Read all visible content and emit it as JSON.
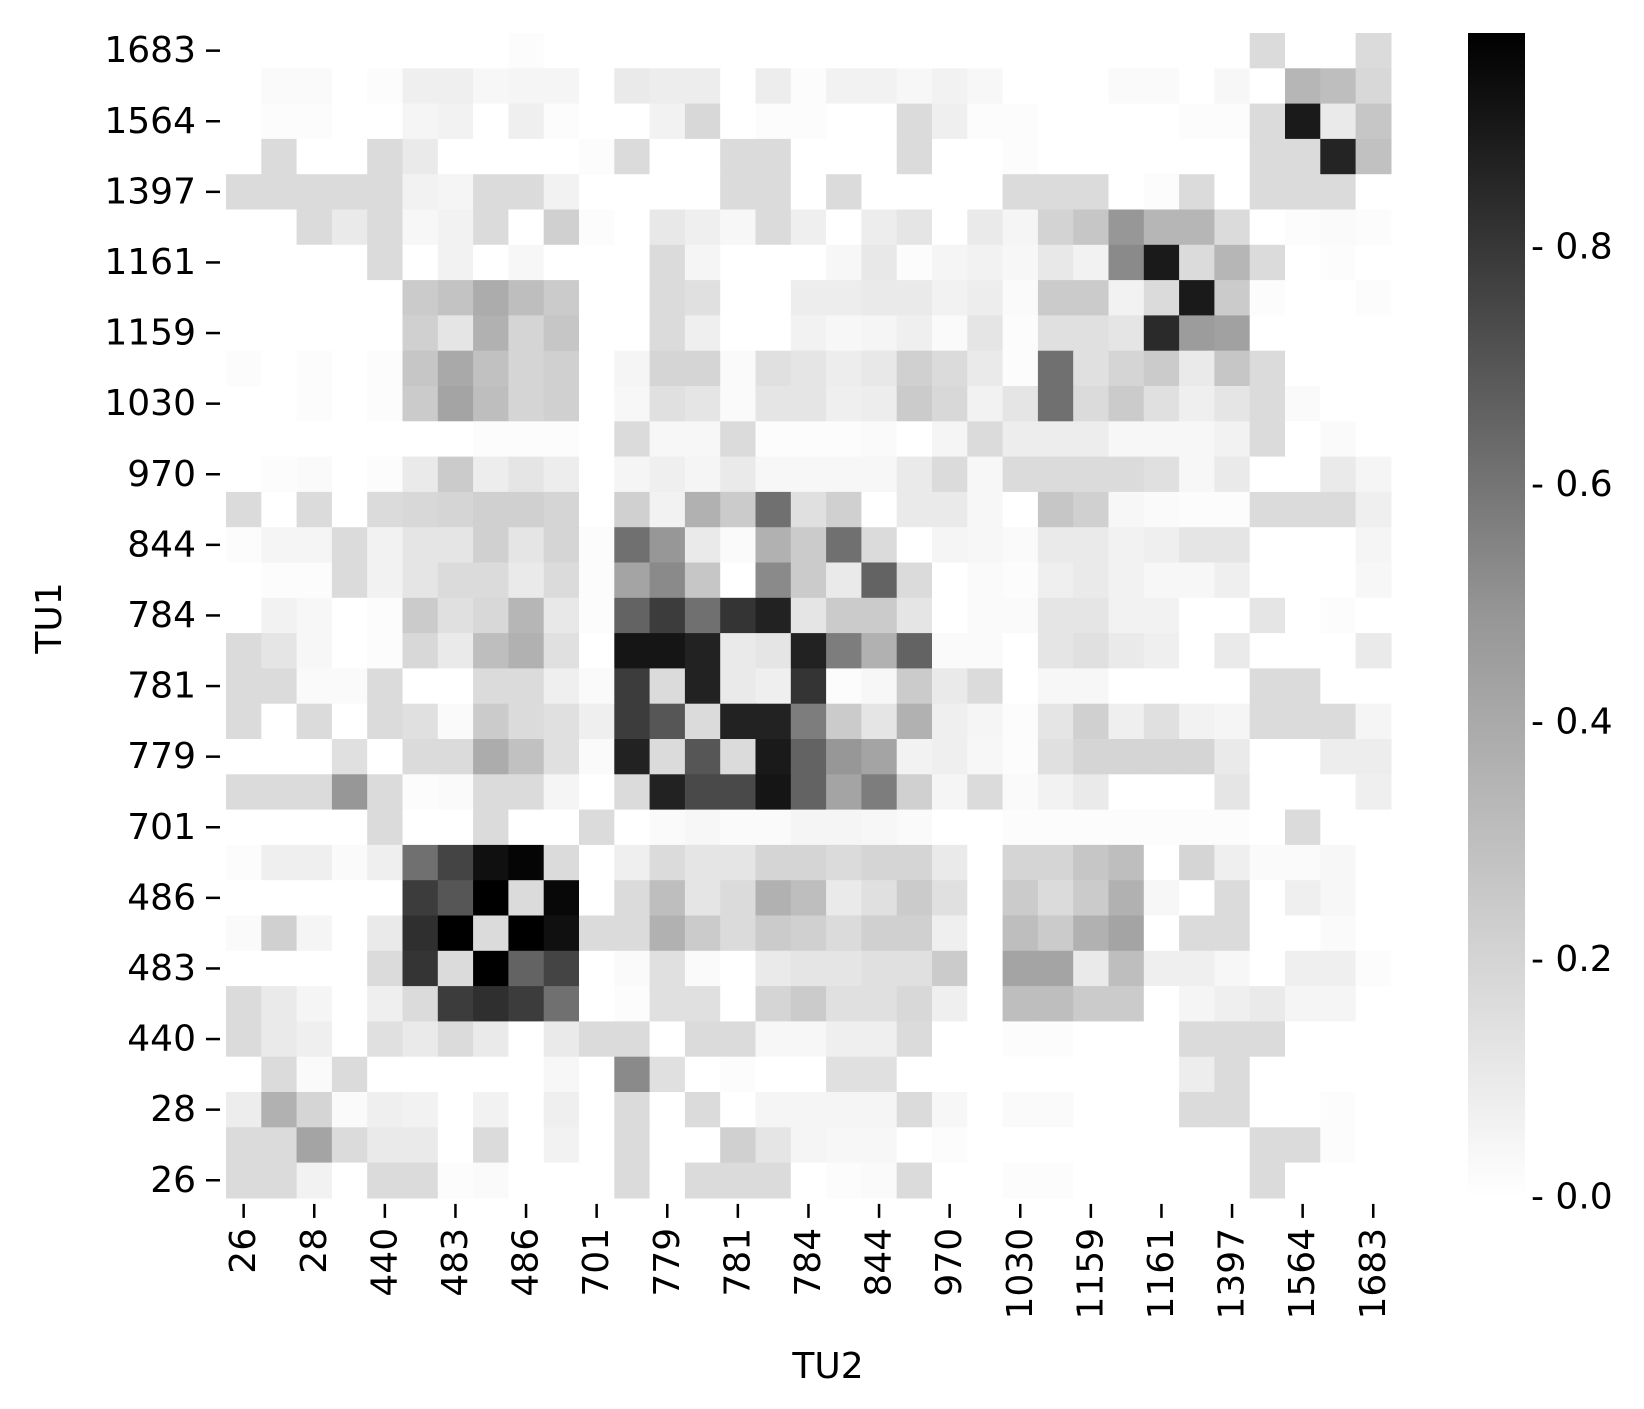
{
  "chart_data": {
    "type": "heatmap",
    "title": "",
    "xlabel": "TU2",
    "ylabel": "TU1",
    "x_tick_labels": [
      "26",
      "28",
      "440",
      "483",
      "486",
      "701",
      "779",
      "781",
      "784",
      "844",
      "970",
      "1030",
      "1159",
      "1161",
      "1397",
      "1564",
      "1683"
    ],
    "y_tick_labels": [
      "26",
      "28",
      "440",
      "483",
      "486",
      "701",
      "779",
      "781",
      "784",
      "844",
      "970",
      "1030",
      "1159",
      "1161",
      "1397",
      "1564",
      "1683"
    ],
    "colorbar": {
      "colormap": "Greys",
      "range": [
        0,
        0.98
      ],
      "ticks": [
        0.0,
        0.2,
        0.4,
        0.6,
        0.8
      ],
      "tick_labels": [
        "0.0",
        "0.2",
        "0.4",
        "0.6",
        "0.8"
      ],
      "tick_prefix": "- "
    },
    "grid": false,
    "rows": 33,
    "cols": 33,
    "values_row_order": "top-to-bottom",
    "values": [
      [
        0,
        0,
        0,
        0,
        0,
        0,
        0,
        0,
        0.01,
        0,
        0,
        0,
        0,
        0,
        0,
        0,
        0,
        0,
        0,
        0,
        0,
        0,
        0,
        0,
        0,
        0,
        0,
        0,
        0,
        0.14,
        0,
        0,
        0.14
      ],
      [
        0,
        0.02,
        0.02,
        0,
        0.01,
        0.06,
        0.06,
        0.03,
        0.04,
        0.04,
        0,
        0.08,
        0.07,
        0.07,
        0,
        0.07,
        0.01,
        0.05,
        0.05,
        0.03,
        0.05,
        0.03,
        0,
        0,
        0,
        0.02,
        0.02,
        0,
        0.03,
        0,
        0.28,
        0.25,
        0.15
      ],
      [
        0,
        0.01,
        0.01,
        0,
        0,
        0.04,
        0.05,
        0,
        0.06,
        0.01,
        0,
        0,
        0.05,
        0.15,
        0,
        0.01,
        0.01,
        0,
        0,
        0.14,
        0.06,
        0.01,
        0.01,
        0,
        0,
        0,
        0,
        0.01,
        0.01,
        0.14,
        0.88,
        0.08,
        0.22
      ],
      [
        0,
        0.14,
        0,
        0,
        0.14,
        0.08,
        0,
        0,
        0,
        0,
        0.01,
        0.14,
        0,
        0,
        0.14,
        0.14,
        0,
        0,
        0,
        0.14,
        0,
        0,
        0.01,
        0,
        0,
        0,
        0,
        0,
        0,
        0.14,
        0.14,
        0.84,
        0.24
      ],
      [
        0.14,
        0.14,
        0.14,
        0.14,
        0.14,
        0.05,
        0.04,
        0.14,
        0.14,
        0.05,
        0,
        0,
        0,
        0,
        0.14,
        0.14,
        0,
        0.14,
        0,
        0,
        0,
        0,
        0.14,
        0.14,
        0.14,
        0,
        0.01,
        0.14,
        0,
        0.14,
        0.14,
        0.14,
        0
      ],
      [
        0,
        0,
        0.14,
        0.08,
        0.14,
        0.03,
        0.05,
        0.14,
        0,
        0.18,
        0.01,
        0,
        0.09,
        0.06,
        0.03,
        0.14,
        0.06,
        0,
        0.07,
        0.1,
        0,
        0.08,
        0.04,
        0.17,
        0.22,
        0.4,
        0.28,
        0.28,
        0.14,
        0,
        0.01,
        0.02,
        0.01
      ],
      [
        0,
        0,
        0,
        0,
        0.14,
        0,
        0.05,
        0,
        0.03,
        0,
        0,
        0,
        0.14,
        0.04,
        0,
        0,
        0,
        0.03,
        0.09,
        0.01,
        0.04,
        0.05,
        0.03,
        0.09,
        0.05,
        0.45,
        0.88,
        0.14,
        0.28,
        0.14,
        0,
        0.01,
        0
      ],
      [
        0,
        0,
        0,
        0,
        0,
        0.2,
        0.23,
        0.32,
        0.25,
        0.2,
        0,
        0,
        0.14,
        0.12,
        0,
        0,
        0.07,
        0.07,
        0.08,
        0.08,
        0.05,
        0.07,
        0.02,
        0.2,
        0.2,
        0.05,
        0.14,
        0.88,
        0.2,
        0.01,
        0,
        0,
        0.01
      ],
      [
        0,
        0,
        0,
        0,
        0,
        0.18,
        0.1,
        0.3,
        0.16,
        0.22,
        0,
        0,
        0.14,
        0.06,
        0,
        0,
        0.05,
        0.03,
        0.04,
        0.06,
        0.02,
        0.1,
        0.01,
        0.12,
        0.12,
        0.1,
        0.82,
        0.38,
        0.36,
        0,
        0,
        0,
        0
      ],
      [
        0.01,
        0,
        0.01,
        0,
        0.01,
        0.22,
        0.33,
        0.24,
        0.16,
        0.18,
        0,
        0.04,
        0.16,
        0.16,
        0.02,
        0.12,
        0.1,
        0.07,
        0.09,
        0.18,
        0.14,
        0.08,
        0.01,
        0.55,
        0.12,
        0.16,
        0.2,
        0.08,
        0.22,
        0.14,
        0,
        0,
        0
      ],
      [
        0,
        0,
        0.01,
        0,
        0.01,
        0.2,
        0.35,
        0.25,
        0.16,
        0.18,
        0,
        0.03,
        0.12,
        0.1,
        0.02,
        0.1,
        0.1,
        0.06,
        0.07,
        0.2,
        0.15,
        0.05,
        0.1,
        0.55,
        0.14,
        0.2,
        0.12,
        0.06,
        0.1,
        0.14,
        0.02,
        0,
        0
      ],
      [
        0,
        0,
        0,
        0,
        0,
        0,
        0,
        0.01,
        0.01,
        0.01,
        0,
        0.14,
        0.03,
        0.03,
        0.14,
        0.01,
        0.01,
        0.01,
        0.02,
        0,
        0.04,
        0.14,
        0.07,
        0.07,
        0.07,
        0.03,
        0.03,
        0.03,
        0.05,
        0.14,
        0,
        0.02,
        0
      ],
      [
        0,
        0.01,
        0.02,
        0,
        0.01,
        0.08,
        0.2,
        0.07,
        0.1,
        0.07,
        0,
        0.04,
        0.06,
        0.04,
        0.08,
        0.03,
        0.03,
        0.03,
        0.03,
        0.08,
        0.14,
        0.03,
        0.14,
        0.14,
        0.14,
        0.14,
        0.12,
        0.03,
        0.08,
        0,
        0,
        0.08,
        0.04
      ],
      [
        0.14,
        0,
        0.14,
        0,
        0.14,
        0.15,
        0.16,
        0.18,
        0.18,
        0.16,
        0,
        0.18,
        0.05,
        0.3,
        0.2,
        0.55,
        0.12,
        0.18,
        0,
        0.08,
        0.08,
        0.03,
        0,
        0.22,
        0.18,
        0.03,
        0.02,
        0.01,
        0.01,
        0.14,
        0.14,
        0.14,
        0.06
      ],
      [
        0.01,
        0.04,
        0.04,
        0.14,
        0.05,
        0.1,
        0.1,
        0.18,
        0.1,
        0.16,
        0.01,
        0.55,
        0.4,
        0.08,
        0.02,
        0.3,
        0.2,
        0.55,
        0.14,
        0,
        0.04,
        0.03,
        0.02,
        0.08,
        0.08,
        0.05,
        0.06,
        0.1,
        0.1,
        0,
        0,
        0,
        0.04
      ],
      [
        0,
        0.01,
        0.01,
        0.14,
        0.05,
        0.1,
        0.14,
        0.14,
        0.08,
        0.14,
        0.01,
        0.35,
        0.45,
        0.22,
        0,
        0.45,
        0.2,
        0.08,
        0.6,
        0.14,
        0,
        0.02,
        0.01,
        0.06,
        0.08,
        0.05,
        0.03,
        0.03,
        0.06,
        0,
        0,
        0,
        0.03
      ],
      [
        0,
        0.05,
        0.03,
        0,
        0.01,
        0.2,
        0.12,
        0.15,
        0.28,
        0.09,
        0.01,
        0.6,
        0.75,
        0.55,
        0.78,
        0.85,
        0.1,
        0.2,
        0.2,
        0.1,
        0,
        0.02,
        0.02,
        0.1,
        0.1,
        0.05,
        0.05,
        0,
        0,
        0.1,
        0,
        0.01,
        0
      ],
      [
        0.14,
        0.1,
        0.03,
        0,
        0.01,
        0.15,
        0.08,
        0.25,
        0.3,
        0.12,
        0,
        0.9,
        0.9,
        0.85,
        0.08,
        0.1,
        0.85,
        0.5,
        0.3,
        0.6,
        0.02,
        0.02,
        0,
        0.1,
        0.12,
        0.08,
        0.06,
        0,
        0.08,
        0,
        0,
        0,
        0.08
      ],
      [
        0.14,
        0.14,
        0.02,
        0.02,
        0.14,
        0,
        0,
        0.14,
        0.14,
        0.06,
        0.02,
        0.75,
        0.14,
        0.85,
        0.08,
        0.06,
        0.78,
        0.01,
        0.03,
        0.2,
        0.08,
        0.14,
        0,
        0.03,
        0.03,
        0,
        0,
        0,
        0,
        0.14,
        0.14,
        0,
        0
      ],
      [
        0.14,
        0,
        0.14,
        0,
        0.14,
        0.12,
        0.02,
        0.2,
        0.14,
        0.12,
        0.06,
        0.75,
        0.65,
        0.14,
        0.85,
        0.85,
        0.5,
        0.2,
        0.1,
        0.3,
        0.06,
        0.04,
        0.01,
        0.1,
        0.18,
        0.06,
        0.12,
        0.05,
        0.04,
        0.14,
        0.14,
        0.14,
        0.04
      ],
      [
        0,
        0,
        0,
        0.12,
        0,
        0.14,
        0.14,
        0.32,
        0.24,
        0.12,
        0.02,
        0.85,
        0.14,
        0.65,
        0.14,
        0.88,
        0.6,
        0.4,
        0.35,
        0.05,
        0.06,
        0.03,
        0.01,
        0.12,
        0.16,
        0.16,
        0.16,
        0.16,
        0.08,
        0,
        0,
        0.07,
        0.07
      ],
      [
        0.14,
        0.14,
        0.14,
        0.4,
        0.14,
        0.01,
        0.02,
        0.14,
        0.14,
        0.04,
        0,
        0.14,
        0.85,
        0.7,
        0.7,
        0.9,
        0.6,
        0.35,
        0.5,
        0.18,
        0.04,
        0.14,
        0.02,
        0.05,
        0.08,
        0,
        0,
        0,
        0.1,
        0,
        0,
        0,
        0.06
      ],
      [
        0,
        0,
        0,
        0,
        0.14,
        0,
        0,
        0.14,
        0,
        0,
        0.14,
        0,
        0.02,
        0.03,
        0.02,
        0.02,
        0.04,
        0.04,
        0.03,
        0.02,
        0,
        0,
        0.01,
        0.01,
        0.01,
        0.01,
        0.01,
        0.01,
        0.01,
        0,
        0.14,
        0,
        0
      ],
      [
        0.01,
        0.06,
        0.06,
        0.02,
        0.06,
        0.55,
        0.72,
        0.92,
        0.96,
        0.14,
        0,
        0.06,
        0.14,
        0.1,
        0.1,
        0.16,
        0.16,
        0.14,
        0.16,
        0.16,
        0.08,
        0,
        0.16,
        0.16,
        0.22,
        0.25,
        0,
        0.16,
        0.06,
        0.02,
        0.02,
        0.03,
        0
      ],
      [
        0,
        0,
        0,
        0,
        0,
        0.75,
        0.65,
        0.98,
        0.14,
        0.95,
        0,
        0.14,
        0.25,
        0.1,
        0.14,
        0.3,
        0.25,
        0.08,
        0.12,
        0.2,
        0.12,
        0,
        0.2,
        0.14,
        0.2,
        0.3,
        0.03,
        0,
        0.14,
        0,
        0.06,
        0.03,
        0
      ],
      [
        0.02,
        0.18,
        0.04,
        0,
        0.08,
        0.8,
        0.98,
        0.14,
        0.98,
        0.92,
        0.14,
        0.14,
        0.3,
        0.2,
        0.14,
        0.2,
        0.18,
        0.14,
        0.18,
        0.18,
        0.06,
        0,
        0.25,
        0.2,
        0.3,
        0.35,
        0,
        0.14,
        0.14,
        0,
        0,
        0.02,
        0
      ],
      [
        0,
        0,
        0,
        0,
        0.14,
        0.78,
        0.14,
        0.98,
        0.6,
        0.72,
        0,
        0.02,
        0.12,
        0.02,
        0,
        0.08,
        0.1,
        0.1,
        0.12,
        0.12,
        0.2,
        0,
        0.35,
        0.35,
        0.08,
        0.25,
        0.06,
        0.06,
        0.03,
        0,
        0.06,
        0.06,
        0.01
      ],
      [
        0.14,
        0.08,
        0.04,
        0,
        0.06,
        0.14,
        0.75,
        0.8,
        0.75,
        0.55,
        0,
        0.01,
        0.12,
        0.12,
        0,
        0.16,
        0.2,
        0.12,
        0.12,
        0.15,
        0.06,
        0,
        0.25,
        0.25,
        0.2,
        0.2,
        0,
        0.04,
        0.06,
        0.08,
        0.04,
        0.04,
        0
      ],
      [
        0.14,
        0.08,
        0.06,
        0,
        0.12,
        0.08,
        0.14,
        0.08,
        0,
        0.08,
        0.14,
        0.14,
        0,
        0.14,
        0.14,
        0.03,
        0.03,
        0.06,
        0.06,
        0.14,
        0,
        0,
        0.01,
        0.01,
        0,
        0,
        0,
        0.14,
        0.14,
        0.14,
        0,
        0,
        0
      ],
      [
        0,
        0.14,
        0.02,
        0.14,
        0,
        0,
        0,
        0,
        0,
        0.03,
        0,
        0.45,
        0.12,
        0,
        0.01,
        0,
        0,
        0.12,
        0.12,
        0,
        0,
        0,
        0,
        0,
        0,
        0,
        0,
        0.07,
        0.14,
        0,
        0,
        0,
        0
      ],
      [
        0.07,
        0.3,
        0.16,
        0.02,
        0.06,
        0.05,
        0,
        0.05,
        0,
        0.06,
        0,
        0.14,
        0,
        0.14,
        0,
        0.04,
        0.04,
        0.04,
        0.04,
        0.14,
        0.03,
        0,
        0.02,
        0.02,
        0,
        0,
        0,
        0.14,
        0.14,
        0,
        0,
        0.01,
        0
      ],
      [
        0.14,
        0.14,
        0.35,
        0.14,
        0.08,
        0.08,
        0,
        0.14,
        0,
        0.05,
        0,
        0.14,
        0,
        0,
        0.18,
        0.1,
        0.04,
        0.03,
        0.03,
        0,
        0.01,
        0,
        0,
        0,
        0,
        0,
        0,
        0,
        0,
        0.14,
        0.14,
        0.01,
        0
      ],
      [
        0.14,
        0.14,
        0.05,
        0,
        0.14,
        0.14,
        0.01,
        0.02,
        0,
        0,
        0,
        0.14,
        0,
        0.14,
        0.14,
        0.14,
        0,
        0.01,
        0.02,
        0.14,
        0,
        0,
        0.01,
        0.01,
        0,
        0,
        0,
        0,
        0,
        0.14,
        0,
        0,
        0
      ]
    ]
  }
}
